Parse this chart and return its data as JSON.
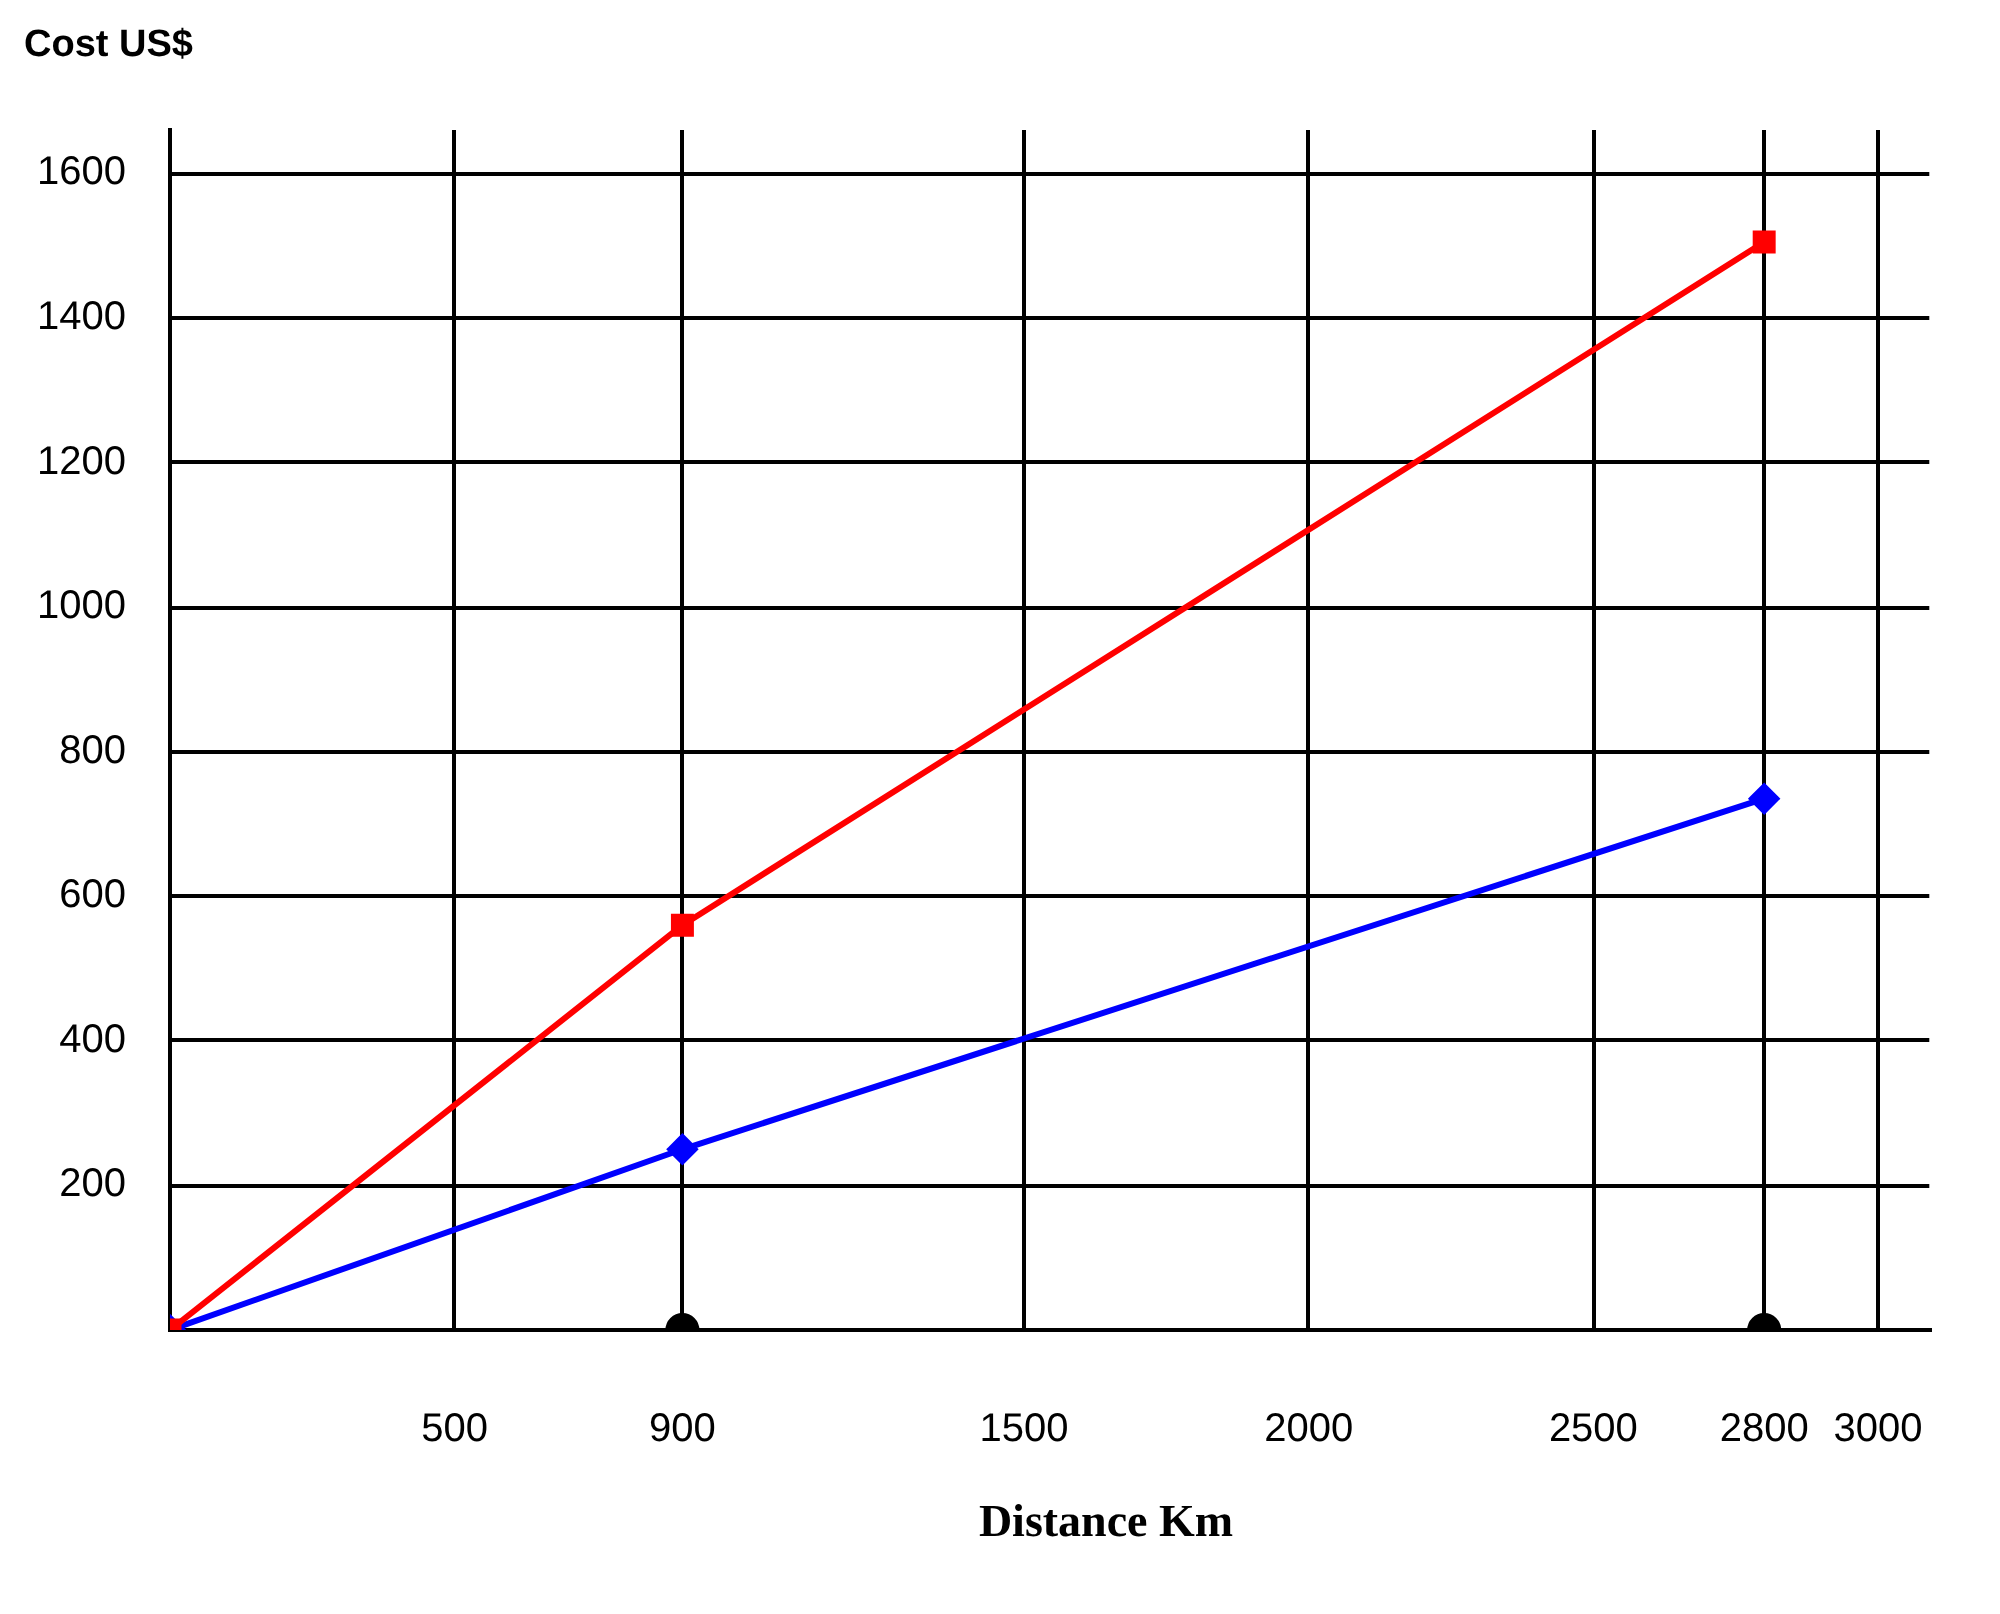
{
  "chart_data": {
    "type": "line",
    "ylabel": "Cost US$",
    "xlabel": "Distance Km",
    "xlim": [
      0,
      3090
    ],
    "xticks": [
      500,
      900,
      1500,
      2000,
      2500,
      2800,
      3000
    ],
    "ylim": [
      0,
      1660
    ],
    "yticks": [
      200,
      400,
      600,
      800,
      1000,
      1200,
      1400,
      1600
    ],
    "grid": true,
    "legend": false,
    "series": [
      {
        "color": "#ff0000",
        "marker": "square",
        "x": [
          0,
          900,
          2800
        ],
        "values": [
          0,
          560,
          1505
        ]
      },
      {
        "color": "#0000ff",
        "marker": "diamond",
        "x": [
          0,
          900,
          2800
        ],
        "values": [
          0,
          250,
          735
        ]
      },
      {
        "type": "scatter",
        "color": "#000000",
        "marker": "circle",
        "x": [
          900,
          2800
        ],
        "values": [
          0,
          0
        ]
      }
    ]
  }
}
